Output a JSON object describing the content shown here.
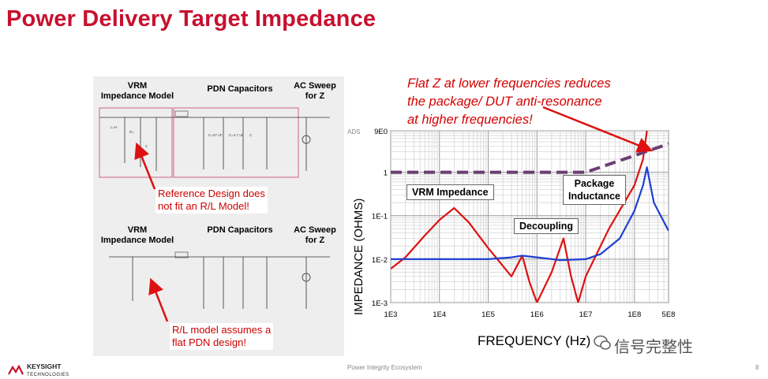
{
  "slide": {
    "title": "Power Delivery Target Impedance",
    "footer_center": "Power Integrity  Ecosystem",
    "page_number": "8",
    "logo_line1": "KEYSIGHT",
    "logo_line2": "TECHNOLOGIES",
    "watermark": "信号完整性"
  },
  "schematic1": {
    "vrm_label": "VRM\nImpedance Model",
    "pdn_label": "PDN Capacitors",
    "ac_label": "AC Sweep\nfor Z",
    "note": "Reference Design does\nnot fit an R/L Model!"
  },
  "schematic2": {
    "vrm_label": "VRM\nImpedance Model",
    "pdn_label": "PDN Capacitors",
    "ac_label": "AC Sweep\nfor Z",
    "note": "R/L model assumes a\nflat PDN design!"
  },
  "callout": "Flat Z at lower frequencies reduces\nthe package/ DUT anti-resonance\nat higher frequencies!",
  "chart_data": {
    "type": "line",
    "xlabel": "FREQUENCY (Hz)",
    "ylabel": "IMPEDANCE (OHMS)",
    "x_scale": "log",
    "y_scale": "log",
    "xlim": [
      1000,
      500000000
    ],
    "ylim": [
      0.001,
      9
    ],
    "x_ticks": [
      "1E3",
      "1E4",
      "1E5",
      "1E6",
      "1E7",
      "1E8",
      "5E8"
    ],
    "y_ticks": [
      "9E0",
      "1",
      "1E-1",
      "1E-2",
      "1E-3"
    ],
    "corner_label": "ADS",
    "grid": true,
    "annotations": [
      "VRM Impedance",
      "Decoupling",
      "Package\nInductance"
    ],
    "series": [
      {
        "color": "#dd1111",
        "x": [
          1000,
          2000,
          5000,
          10000,
          20000,
          40000,
          100000,
          300000,
          500000,
          700000,
          1000000,
          2000000,
          3500000,
          5000000,
          7000000,
          10000000,
          30000000,
          100000000,
          150000000,
          180000000
        ],
        "y": [
          0.006,
          0.011,
          0.035,
          0.08,
          0.15,
          0.07,
          0.018,
          0.004,
          0.012,
          0.003,
          0.001,
          0.005,
          0.03,
          0.004,
          0.001,
          0.004,
          0.05,
          0.5,
          2,
          9
        ]
      },
      {
        "color": "#1f3fd0",
        "x": [
          1000,
          3000,
          10000,
          100000,
          300000,
          500000,
          1000000,
          3000000,
          10000000,
          20000000,
          50000000,
          100000000,
          150000000,
          180000000,
          250000000,
          500000000
        ],
        "y": [
          0.01,
          0.01,
          0.01,
          0.01,
          0.011,
          0.012,
          0.011,
          0.0095,
          0.01,
          0.013,
          0.03,
          0.13,
          0.5,
          1.3,
          0.2,
          0.045
        ]
      },
      {
        "color": "#6b3e72",
        "dashed": true,
        "x": [
          1000,
          10000000,
          500000000
        ],
        "y": [
          1,
          1,
          4.5
        ]
      }
    ]
  }
}
